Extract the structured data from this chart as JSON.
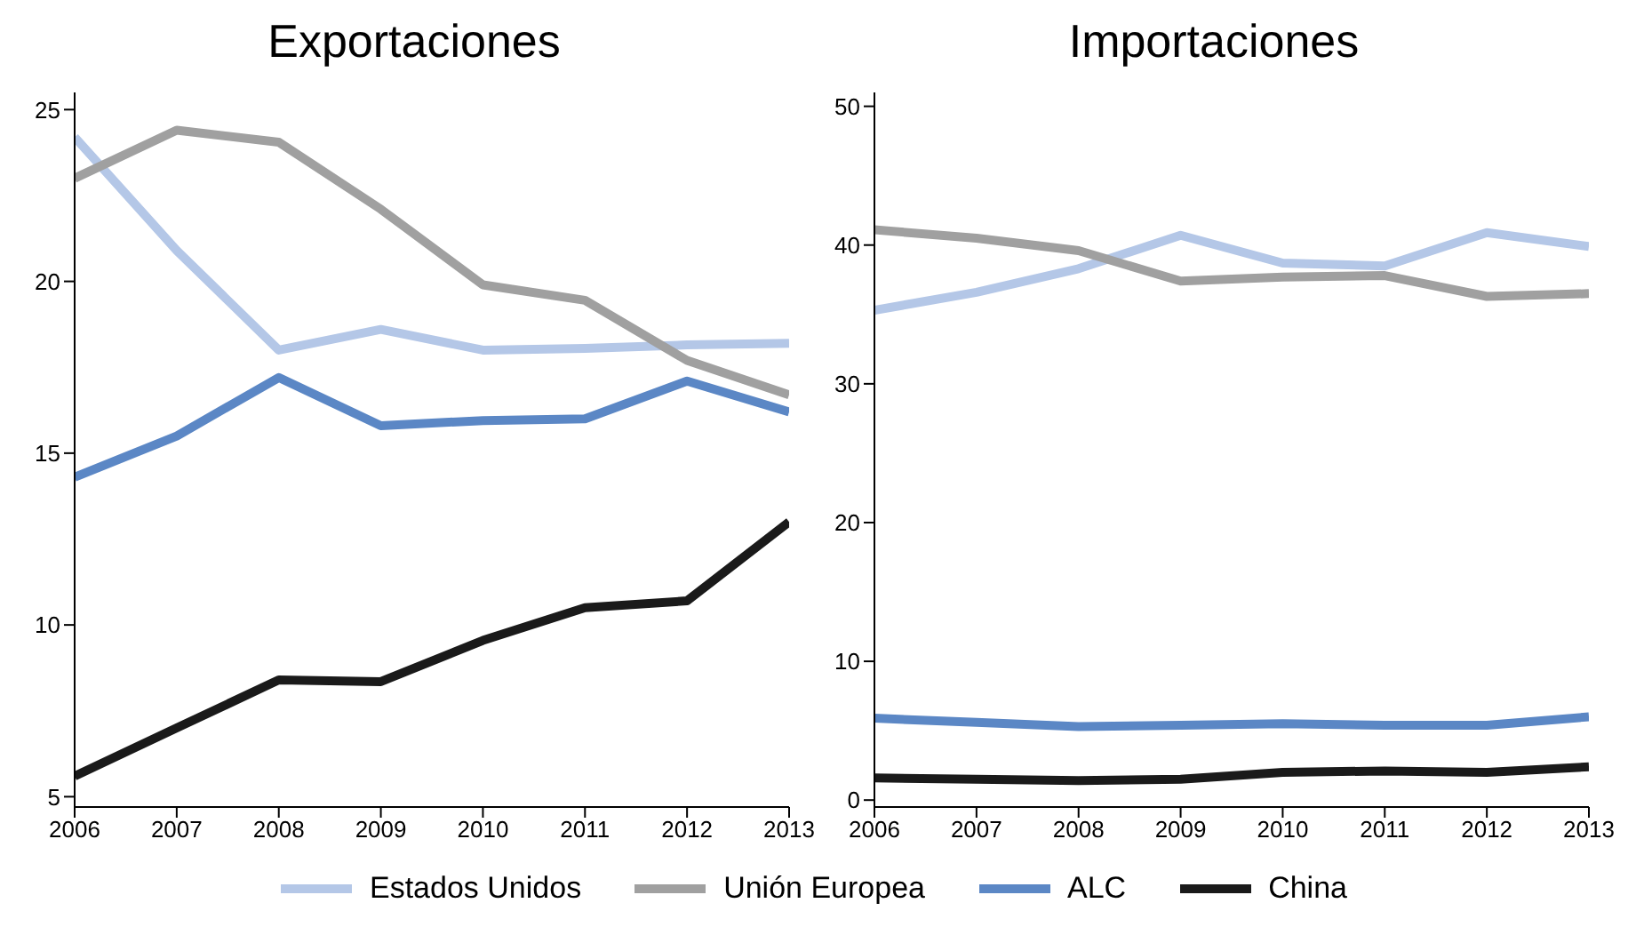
{
  "chart_data": [
    {
      "type": "line",
      "title": "Exportaciones",
      "x": [
        2006,
        2007,
        2008,
        2009,
        2010,
        2011,
        2012,
        2013
      ],
      "xlim": [
        2006,
        2013
      ],
      "xticks": [
        2006,
        2007,
        2008,
        2009,
        2010,
        2011,
        2012,
        2013
      ],
      "ylim": [
        4.7,
        25.5
      ],
      "yticks": [
        5,
        10,
        15,
        20,
        25
      ],
      "grid": false,
      "legend": "bottom",
      "marker": "none",
      "line_style": "solid",
      "series": [
        {
          "name": "Estados Unidos",
          "color": "#b4c7e7",
          "values": [
            24.2,
            20.9,
            18.0,
            18.6,
            18.0,
            18.05,
            18.15,
            18.2
          ]
        },
        {
          "name": "Unión Europea",
          "color": "#a0a0a0",
          "values": [
            23.0,
            24.4,
            24.05,
            22.1,
            19.9,
            19.45,
            17.7,
            16.7
          ]
        },
        {
          "name": "ALC",
          "color": "#5b87c5",
          "values": [
            14.3,
            15.5,
            17.2,
            15.8,
            15.95,
            16.0,
            17.1,
            16.2
          ]
        },
        {
          "name": "China",
          "color": "#1a1a1a",
          "values": [
            5.6,
            7.0,
            8.4,
            8.35,
            9.55,
            10.5,
            10.7,
            13.0
          ]
        }
      ]
    },
    {
      "type": "line",
      "title": "Importaciones",
      "x": [
        2006,
        2007,
        2008,
        2009,
        2010,
        2011,
        2012,
        2013
      ],
      "xlim": [
        2006,
        2013
      ],
      "xticks": [
        2006,
        2007,
        2008,
        2009,
        2010,
        2011,
        2012,
        2013
      ],
      "ylim": [
        -0.5,
        51
      ],
      "yticks": [
        0,
        10,
        20,
        30,
        40,
        50
      ],
      "grid": false,
      "marker": "none",
      "line_style": "solid",
      "series": [
        {
          "color": "#b4c7e7",
          "values": [
            35.3,
            36.6,
            38.3,
            40.7,
            38.7,
            38.5,
            40.9,
            39.9
          ]
        },
        {
          "color": "#a0a0a0",
          "values": [
            41.1,
            40.5,
            39.6,
            37.4,
            37.7,
            37.8,
            36.3,
            36.5
          ]
        },
        {
          "color": "#5b87c5",
          "values": [
            5.9,
            5.6,
            5.3,
            5.4,
            5.5,
            5.4,
            5.4,
            6.0
          ]
        },
        {
          "color": "#1a1a1a",
          "values": [
            1.6,
            1.5,
            1.4,
            1.5,
            2.0,
            2.1,
            2.0,
            2.4
          ]
        }
      ]
    }
  ]
}
